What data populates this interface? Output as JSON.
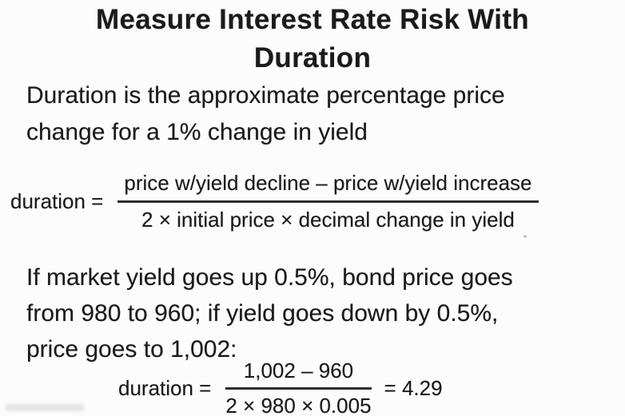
{
  "slide": {
    "title_lines": [
      "Measure Interest Rate Risk With",
      "Duration"
    ],
    "paragraph1_lines": [
      "Duration is the approximate percentage price",
      "change for a 1% change in yield"
    ],
    "formula_general": {
      "lhs": "duration =",
      "numerator": "price w/yield decline – price w/yield increase",
      "denominator": "2 × initial price × decimal change in yield"
    },
    "paragraph2_lines": [
      "If market yield goes up 0.5%, bond price goes",
      "from 980 to 960; if yield goes down by 0.5%,",
      "price goes to 1,002:"
    ],
    "formula_example": {
      "lhs": "duration =",
      "numerator": "1,002 – 960",
      "denominator": "2 × 980 × 0.005",
      "result": "= 4.29"
    },
    "colors": {
      "text": "#1b1b1b",
      "background": "#fcfcfc"
    }
  }
}
